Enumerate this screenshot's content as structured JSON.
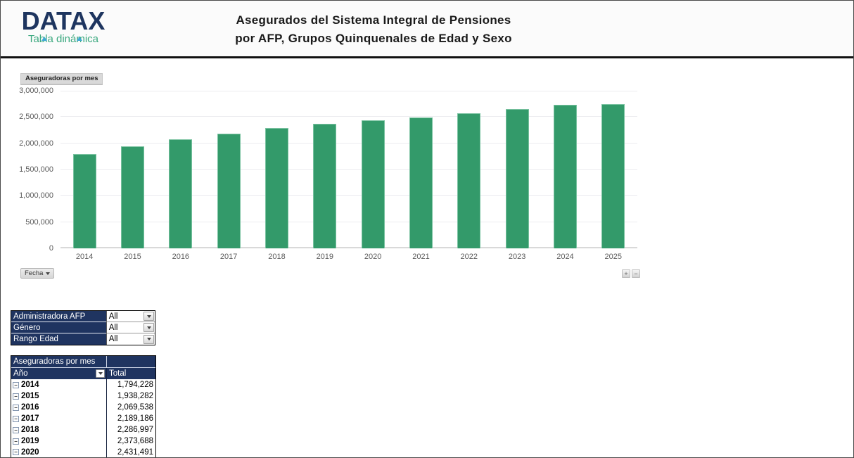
{
  "header": {
    "logo_text": "DATAX",
    "logo_subtitle": "Tabla dinámica",
    "title_line1": "Asegurados del Sistema Integral de Pensiones",
    "title_line2": "por AFP, Grupos Quinquenales de Edad y Sexo"
  },
  "chart": {
    "field_button": "Aseguradoras por mes",
    "axis_field_button": "Fecha",
    "zoom_in_label": "+",
    "zoom_out_label": "−",
    "y_ticks": [
      "3,000,000",
      "2,500,000",
      "2,000,000",
      "1,500,000",
      "1,000,000",
      "500,000",
      "0"
    ]
  },
  "chart_data": {
    "type": "bar",
    "title": "Aseguradoras por mes",
    "categories": [
      "2014",
      "2015",
      "2016",
      "2017",
      "2018",
      "2019",
      "2020",
      "2021",
      "2022",
      "2023",
      "2024",
      "2025"
    ],
    "values": [
      1794228,
      1938282,
      2069538,
      2189186,
      2286997,
      2373688,
      2431491,
      2495000,
      2575000,
      2655000,
      2730000,
      2750000
    ],
    "xlabel": "Fecha",
    "ylabel": "",
    "ylim": [
      0,
      3000000
    ],
    "grid": true,
    "legend": false,
    "bar_color": "#339a6a"
  },
  "filters": {
    "rows": [
      {
        "label": "Administradora AFP",
        "value": "All"
      },
      {
        "label": "Género",
        "value": "All"
      },
      {
        "label": "Rango Edad",
        "value": "All"
      }
    ]
  },
  "pivot": {
    "title": "Aseguradoras por mes",
    "row_header": "Año",
    "value_header": "Total",
    "rows": [
      {
        "year": "2014",
        "total": "1,794,228"
      },
      {
        "year": "2015",
        "total": "1,938,282"
      },
      {
        "year": "2016",
        "total": "2,069,538"
      },
      {
        "year": "2017",
        "total": "2,189,186"
      },
      {
        "year": "2018",
        "total": "2,286,997"
      },
      {
        "year": "2019",
        "total": "2,373,688"
      },
      {
        "year": "2020",
        "total": "2,431,491"
      }
    ]
  },
  "colors": {
    "navy": "#1f3460",
    "bar_green": "#339a6a",
    "logo_navy": "#1e355f",
    "logo_green": "#3aa87e",
    "logo_triangle_blue": "#3fa9d4",
    "gridline": "#ececf0"
  }
}
